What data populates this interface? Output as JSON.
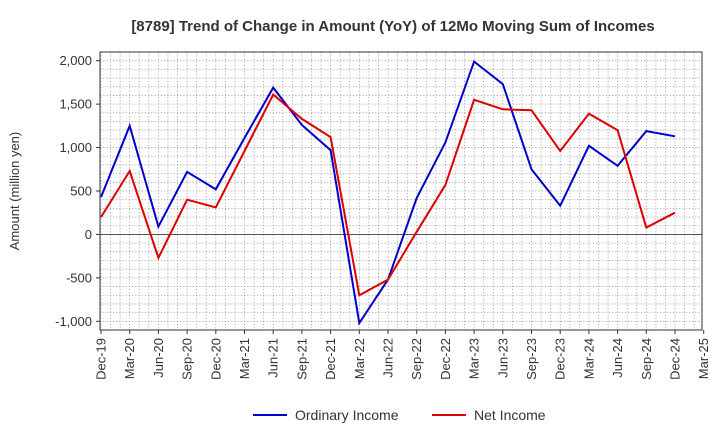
{
  "chart_data": {
    "type": "line",
    "title": "[8789]  Trend of Change in Amount (YoY) of 12Mo Moving Sum of Incomes",
    "xlabel": "",
    "ylabel": "Amount (million yen)",
    "ylim": [
      -1100,
      2100
    ],
    "yticks": [
      -1000,
      -500,
      0,
      500,
      1000,
      1500,
      2000
    ],
    "ytick_labels": [
      "-1,000",
      "-500",
      "0",
      "500",
      "1,000",
      "1,500",
      "2,000"
    ],
    "grid": true,
    "legend_position": "bottom-center",
    "categories": [
      "Dec-19",
      "Mar-20",
      "Jun-20",
      "Sep-20",
      "Dec-20",
      "Mar-21",
      "Jun-21",
      "Sep-21",
      "Dec-21",
      "Mar-22",
      "Jun-22",
      "Sep-22",
      "Dec-22",
      "Mar-23",
      "Jun-23",
      "Sep-23",
      "Dec-23",
      "Mar-24",
      "Jun-24",
      "Sep-24",
      "Dec-24",
      "Mar-25"
    ],
    "series": [
      {
        "name": "Ordinary Income",
        "color": "#0000cc",
        "values": [
          430,
          1250,
          90,
          720,
          520,
          1110,
          1690,
          1260,
          970,
          -1020,
          -520,
          420,
          1060,
          1990,
          1730,
          750,
          330,
          1020,
          790,
          1190,
          1130,
          null
        ]
      },
      {
        "name": "Net Income",
        "color": "#dd0000",
        "values": [
          200,
          730,
          -270,
          400,
          310,
          960,
          1610,
          1330,
          1120,
          -700,
          -520,
          30,
          570,
          1550,
          1440,
          1430,
          960,
          1390,
          1200,
          80,
          250,
          null
        ]
      }
    ]
  }
}
